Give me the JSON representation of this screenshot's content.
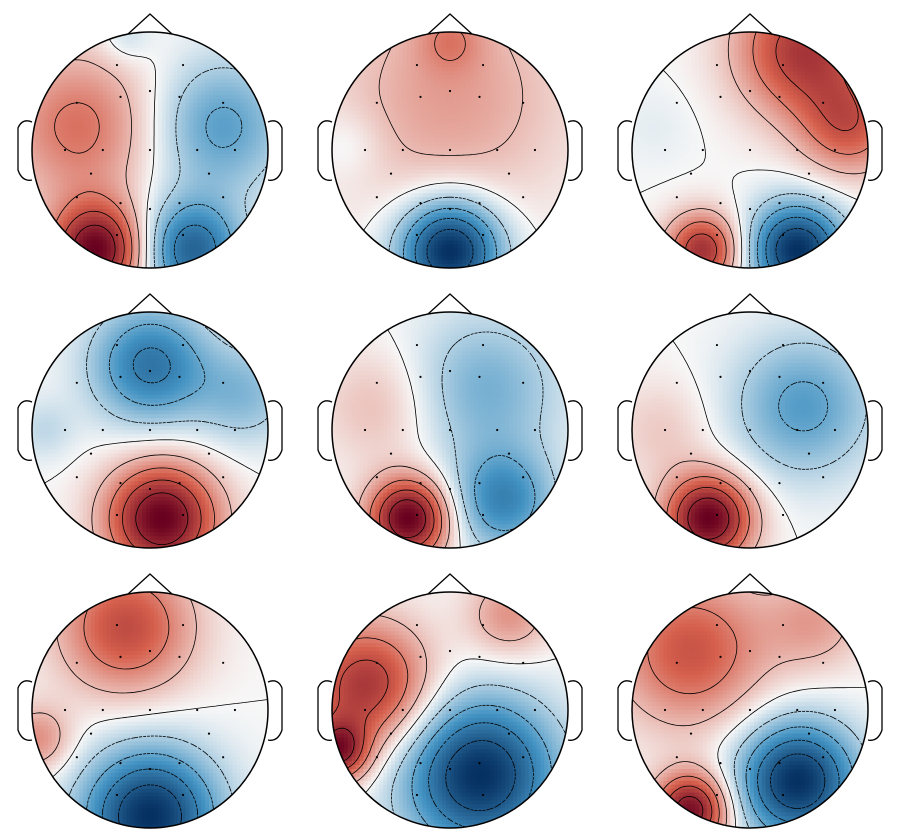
{
  "figure": {
    "grid": {
      "rows": 3,
      "cols": 3
    },
    "colors": {
      "positive_max": "#67001f",
      "positive_mid": "#d6604d",
      "neutral": "#f7f7f7",
      "negative_mid": "#4393c3",
      "negative_max": "#053061",
      "outline": "#000000",
      "sensor": "#000000"
    },
    "electrodes": [
      [
        -0.28,
        0.72
      ],
      [
        0.28,
        0.72
      ],
      [
        -0.62,
        0.4
      ],
      [
        -0.25,
        0.45
      ],
      [
        0.25,
        0.45
      ],
      [
        0.62,
        0.4
      ],
      [
        -0.72,
        0.0
      ],
      [
        -0.4,
        0.0
      ],
      [
        0.0,
        0.0
      ],
      [
        0.4,
        0.0
      ],
      [
        0.72,
        0.0
      ],
      [
        -0.62,
        -0.4
      ],
      [
        -0.25,
        -0.45
      ],
      [
        0.25,
        -0.45
      ],
      [
        0.62,
        -0.4
      ],
      [
        -0.28,
        -0.72
      ],
      [
        0.28,
        -0.72
      ],
      [
        0.0,
        -0.5
      ],
      [
        0.0,
        0.5
      ],
      [
        -0.5,
        -0.2
      ],
      [
        0.5,
        -0.2
      ]
    ],
    "maps": [
      {
        "sources": [
          [
            -0.45,
            -0.85,
            1.0,
            0.28
          ],
          [
            0.35,
            -0.85,
            -0.75,
            0.3
          ],
          [
            -0.6,
            0.2,
            0.45,
            0.45
          ],
          [
            0.6,
            0.2,
            -0.45,
            0.4
          ],
          [
            -0.2,
            0.95,
            -0.15,
            0.15
          ]
        ]
      },
      {
        "sources": [
          [
            0.0,
            -0.85,
            -1.0,
            0.3
          ],
          [
            0.0,
            0.45,
            0.28,
            0.7
          ],
          [
            -0.85,
            0.05,
            -0.1,
            0.2
          ],
          [
            0.0,
            0.95,
            0.2,
            0.2
          ]
        ]
      },
      {
        "sources": [
          [
            -0.4,
            -0.85,
            0.75,
            0.22
          ],
          [
            0.4,
            -0.85,
            -1.0,
            0.28
          ],
          [
            0.45,
            0.85,
            0.7,
            0.4
          ],
          [
            0.85,
            0.2,
            0.5,
            0.3
          ],
          [
            -0.8,
            0.2,
            -0.05,
            0.25
          ]
        ]
      },
      {
        "sources": [
          [
            0.1,
            -0.75,
            1.0,
            0.33
          ],
          [
            0.0,
            0.55,
            -0.65,
            0.35
          ],
          [
            -0.9,
            0.0,
            -0.15,
            0.18
          ],
          [
            0.8,
            0.3,
            -0.3,
            0.3
          ]
        ]
      },
      {
        "sources": [
          [
            -0.35,
            -0.75,
            1.0,
            0.24
          ],
          [
            0.45,
            -0.6,
            -0.55,
            0.3
          ],
          [
            0.3,
            0.35,
            -0.35,
            0.45
          ],
          [
            -0.6,
            0.2,
            0.2,
            0.35
          ]
        ]
      },
      {
        "sources": [
          [
            -0.35,
            -0.75,
            1.0,
            0.26
          ],
          [
            0.45,
            0.2,
            -0.45,
            0.42
          ],
          [
            -0.75,
            0.0,
            0.15,
            0.3
          ]
        ]
      },
      {
        "sources": [
          [
            0.0,
            -0.9,
            -1.0,
            0.4
          ],
          [
            -0.2,
            0.7,
            0.6,
            0.4
          ],
          [
            -0.95,
            -0.25,
            0.35,
            0.2
          ]
        ]
      },
      {
        "sources": [
          [
            0.25,
            -0.55,
            -0.9,
            0.45
          ],
          [
            -0.7,
            0.2,
            0.65,
            0.38
          ],
          [
            -0.95,
            -0.35,
            0.7,
            0.18
          ],
          [
            0.5,
            0.8,
            0.3,
            0.25
          ]
        ]
      },
      {
        "sources": [
          [
            -0.5,
            -0.85,
            0.85,
            0.22
          ],
          [
            0.4,
            -0.6,
            -0.9,
            0.35
          ],
          [
            -0.5,
            0.5,
            0.5,
            0.45
          ],
          [
            0.55,
            0.75,
            0.25,
            0.3
          ]
        ]
      }
    ]
  }
}
